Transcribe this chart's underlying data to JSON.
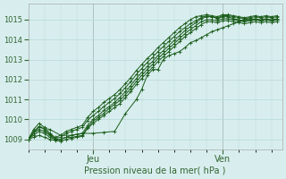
{
  "bg_color": "#d8eeee",
  "grid_color": "#b8d8d8",
  "line_color": "#1a5c1a",
  "xlabel": "Pression niveau de la mer( hPa )",
  "ylim": [
    1008.5,
    1015.8
  ],
  "xlim": [
    0,
    47
  ],
  "yticks": [
    1009,
    1010,
    1011,
    1012,
    1013,
    1014,
    1015
  ],
  "xtick_jeu": 12,
  "xtick_ven": 36,
  "series": [
    {
      "x": [
        0,
        1,
        2,
        3,
        4,
        5,
        6,
        7,
        8,
        9,
        10,
        11,
        12,
        13,
        14,
        15,
        16,
        17,
        18,
        19,
        20,
        21,
        22,
        23,
        24,
        25,
        26,
        27,
        28,
        29,
        30,
        31,
        32,
        33,
        34,
        35,
        36,
        37,
        38,
        39,
        40,
        41,
        42,
        43,
        44,
        45,
        46
      ],
      "y": [
        1009.0,
        1009.3,
        1009.5,
        1009.4,
        1009.2,
        1009.0,
        1009.0,
        1009.1,
        1009.2,
        1009.25,
        1009.3,
        1009.7,
        1010.0,
        1010.2,
        1010.45,
        1010.65,
        1010.85,
        1011.1,
        1011.4,
        1011.7,
        1012.05,
        1012.35,
        1012.65,
        1012.9,
        1013.2,
        1013.45,
        1013.7,
        1013.95,
        1014.2,
        1014.45,
        1014.65,
        1014.85,
        1015.05,
        1015.15,
        1015.15,
        1015.05,
        1015.15,
        1015.15,
        1015.05,
        1015.0,
        1014.95,
        1015.0,
        1015.05,
        1015.0,
        1015.05,
        1015.0,
        1015.05
      ]
    },
    {
      "x": [
        0,
        1,
        2,
        3,
        4,
        5,
        6,
        7,
        8,
        9,
        10,
        11,
        12,
        13,
        14,
        15,
        16,
        17,
        18,
        19,
        20,
        21,
        22,
        23,
        24,
        25,
        26,
        27,
        28,
        29,
        30,
        31,
        32,
        33,
        34,
        35,
        36,
        37,
        38,
        39,
        40,
        41,
        42,
        43,
        44,
        45,
        46
      ],
      "y": [
        1009.0,
        1009.2,
        1009.4,
        1009.3,
        1009.1,
        1009.0,
        1009.0,
        1009.1,
        1009.1,
        1009.15,
        1009.2,
        1009.6,
        1009.9,
        1010.1,
        1010.3,
        1010.55,
        1010.75,
        1010.95,
        1011.25,
        1011.55,
        1011.9,
        1012.2,
        1012.5,
        1012.75,
        1013.05,
        1013.3,
        1013.55,
        1013.8,
        1014.05,
        1014.3,
        1014.5,
        1014.7,
        1014.9,
        1015.0,
        1015.0,
        1014.95,
        1015.05,
        1015.05,
        1015.0,
        1014.95,
        1014.9,
        1014.95,
        1015.0,
        1014.95,
        1015.0,
        1014.95,
        1015.0
      ]
    },
    {
      "x": [
        0,
        1,
        2,
        3,
        4,
        5,
        6,
        7,
        8,
        9,
        10,
        11,
        12,
        13,
        14,
        15,
        16,
        17,
        18,
        19,
        20,
        21,
        22,
        23,
        24,
        25,
        26,
        27,
        28,
        29,
        30,
        31,
        32,
        33,
        34,
        35,
        36,
        37,
        38,
        39,
        40,
        41,
        42,
        43,
        44,
        45,
        46
      ],
      "y": [
        1009.0,
        1009.1,
        1009.2,
        1009.1,
        1009.0,
        1008.95,
        1008.9,
        1009.0,
        1009.05,
        1009.1,
        1009.15,
        1009.55,
        1009.8,
        1010.0,
        1010.2,
        1010.4,
        1010.6,
        1010.8,
        1011.1,
        1011.4,
        1011.75,
        1012.05,
        1012.35,
        1012.6,
        1012.9,
        1013.15,
        1013.4,
        1013.65,
        1013.9,
        1014.15,
        1014.35,
        1014.55,
        1014.75,
        1014.9,
        1014.9,
        1014.85,
        1014.95,
        1014.95,
        1014.9,
        1014.85,
        1014.8,
        1014.85,
        1014.9,
        1014.85,
        1014.9,
        1014.85,
        1014.9
      ]
    },
    {
      "x": [
        0,
        2,
        4,
        6,
        8,
        10,
        12,
        14,
        16,
        18,
        20,
        21,
        22,
        23,
        24,
        25,
        26,
        27,
        28,
        29,
        30,
        31,
        32,
        33,
        34,
        35,
        36,
        37,
        38,
        39,
        40,
        41,
        42,
        43,
        44,
        45,
        46
      ],
      "y": [
        1009.0,
        1009.6,
        1009.5,
        1009.2,
        1009.2,
        1009.3,
        1009.3,
        1009.35,
        1009.4,
        1010.3,
        1011.0,
        1011.5,
        1012.2,
        1012.5,
        1012.5,
        1013.0,
        1013.2,
        1013.3,
        1013.4,
        1013.6,
        1013.85,
        1013.95,
        1014.1,
        1014.25,
        1014.4,
        1014.5,
        1014.6,
        1014.7,
        1014.8,
        1014.9,
        1015.0,
        1015.05,
        1015.0,
        1014.95,
        1015.0,
        1014.95,
        1015.0
      ]
    },
    {
      "x": [
        0,
        1,
        2,
        3,
        4,
        5,
        6,
        7,
        8,
        9,
        10,
        11,
        12,
        13,
        14,
        15,
        16,
        17,
        18,
        19,
        20,
        21,
        22,
        23,
        24,
        25,
        26,
        27,
        28,
        29,
        30,
        31,
        32,
        33,
        34,
        35,
        36,
        37,
        38,
        39,
        40,
        41,
        42,
        43,
        44,
        45,
        46
      ],
      "y": [
        1009.0,
        1009.5,
        1009.8,
        1009.6,
        1009.3,
        1009.1,
        1009.2,
        1009.4,
        1009.5,
        1009.6,
        1009.7,
        1010.1,
        1010.4,
        1010.6,
        1010.85,
        1011.05,
        1011.25,
        1011.5,
        1011.8,
        1012.1,
        1012.45,
        1012.75,
        1013.05,
        1013.3,
        1013.6,
        1013.85,
        1014.1,
        1014.35,
        1014.6,
        1014.8,
        1015.0,
        1015.15,
        1015.2,
        1015.25,
        1015.2,
        1015.15,
        1015.25,
        1015.25,
        1015.2,
        1015.15,
        1015.1,
        1015.15,
        1015.2,
        1015.15,
        1015.2,
        1015.15,
        1015.2
      ]
    },
    {
      "x": [
        0,
        1,
        2,
        3,
        4,
        5,
        6,
        7,
        8,
        9,
        10,
        11,
        12,
        13,
        14,
        15,
        16,
        17,
        18,
        19,
        20,
        21,
        22,
        23,
        24,
        25,
        26,
        27,
        28,
        29,
        30,
        31,
        32,
        33,
        34,
        35,
        36,
        37,
        38,
        39,
        40,
        41,
        42,
        43,
        44,
        45,
        46
      ],
      "y": [
        1009.0,
        1009.4,
        1009.65,
        1009.5,
        1009.25,
        1009.05,
        1009.1,
        1009.3,
        1009.4,
        1009.5,
        1009.6,
        1009.95,
        1010.2,
        1010.4,
        1010.65,
        1010.85,
        1011.05,
        1011.3,
        1011.6,
        1011.9,
        1012.25,
        1012.55,
        1012.85,
        1013.1,
        1013.4,
        1013.65,
        1013.9,
        1014.15,
        1014.4,
        1014.6,
        1014.8,
        1014.95,
        1015.1,
        1015.2,
        1015.15,
        1015.1,
        1015.2,
        1015.2,
        1015.15,
        1015.1,
        1015.05,
        1015.1,
        1015.15,
        1015.1,
        1015.15,
        1015.1,
        1015.15
      ]
    }
  ]
}
